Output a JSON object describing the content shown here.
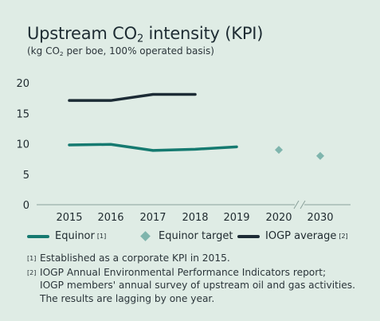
{
  "header": {
    "title_main": "Upstream CO",
    "title_sub": "2",
    "title_rest": " intensity (KPI)",
    "subtitle_main": "(kg CO",
    "subtitle_sub": "2",
    "subtitle_rest": " per boe, 100% operated basis)"
  },
  "colors": {
    "background": "#dfece5",
    "equinor": "#157a70",
    "target": "#7fb5ad",
    "iogp": "#1c2b35",
    "grid": "#8aa09a"
  },
  "chart_data": {
    "type": "line",
    "categories": [
      "2015",
      "2016",
      "2017",
      "2018",
      "2019",
      "2020",
      "2030"
    ],
    "axis_break_between": [
      "2020",
      "2030"
    ],
    "ylim": [
      0,
      20
    ],
    "yticks": [
      0,
      5,
      10,
      15,
      20
    ],
    "grid": false,
    "legend_position": "bottom",
    "series": [
      {
        "name": "Equinor",
        "marker": "line",
        "values": [
          9.8,
          9.9,
          8.9,
          9.1,
          9.5,
          null,
          null
        ]
      },
      {
        "name": "Equinor target",
        "marker": "diamond",
        "values": [
          null,
          null,
          null,
          null,
          null,
          9.0,
          8.0
        ]
      },
      {
        "name": "IOGP average",
        "marker": "line",
        "values": [
          17.1,
          17.1,
          18.1,
          18.1,
          null,
          null,
          null
        ]
      }
    ]
  },
  "legend": [
    {
      "label": "Equinor",
      "note": "[1]"
    },
    {
      "label": "Equinor target",
      "note": ""
    },
    {
      "label": "IOGP average",
      "note": "[2]"
    }
  ],
  "notes": [
    {
      "mark": "[1]",
      "text": "Established as a corporate KPI in 2015."
    },
    {
      "mark": "[2]",
      "text": "IOGP Annual Environmental Performance Indicators report;\nIOGP members' annual survey of upstream oil and gas activities.\nThe results are lagging by one year."
    }
  ]
}
